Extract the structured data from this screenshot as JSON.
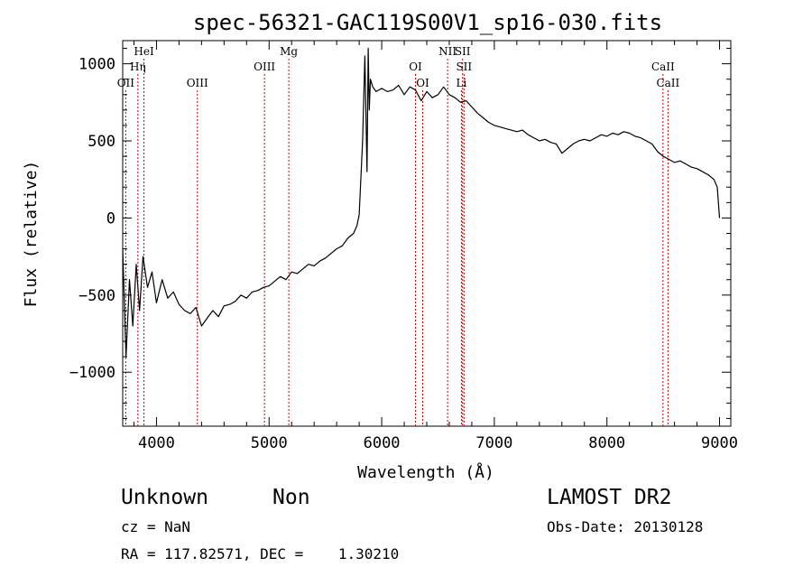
{
  "chart_data": {
    "type": "line",
    "title": "spec-56321-GAC119S00V1_sp16-030.fits",
    "xlabel": "Wavelength (Å)",
    "ylabel": "Flux (relative)",
    "xlim": [
      3700,
      9100
    ],
    "ylim": [
      -1350,
      1150
    ],
    "xticks": [
      4000,
      5000,
      6000,
      7000,
      8000,
      9000
    ],
    "yticks": [
      -1000,
      -500,
      0,
      500,
      1000
    ],
    "grid": false,
    "line_color": "#000000",
    "marker_color": "#cc0000",
    "series": [
      {
        "x": [
          3700,
          3730,
          3760,
          3790,
          3820,
          3850,
          3880,
          3920,
          3960,
          4000,
          4050,
          4100,
          4150,
          4200,
          4250,
          4300,
          4350,
          4400,
          4450,
          4500,
          4550,
          4600,
          4650,
          4700,
          4750,
          4800,
          4850,
          4900,
          4950,
          5000,
          5050,
          5100,
          5150,
          5200,
          5250,
          5300,
          5350,
          5400,
          5450,
          5500,
          5550,
          5600,
          5650,
          5700,
          5750,
          5780,
          5800,
          5830,
          5850,
          5870,
          5880,
          5890,
          5900,
          5920,
          5950,
          6000,
          6050,
          6100,
          6150,
          6200,
          6250,
          6300,
          6350,
          6400,
          6450,
          6500,
          6550,
          6600,
          6650,
          6700,
          6750,
          6800,
          6850,
          6900,
          6950,
          7000,
          7050,
          7100,
          7150,
          7200,
          7250,
          7300,
          7350,
          7400,
          7450,
          7500,
          7550,
          7600,
          7650,
          7700,
          7750,
          7800,
          7850,
          7900,
          7950,
          8000,
          8050,
          8100,
          8150,
          8200,
          8250,
          8300,
          8350,
          8400,
          8450,
          8500,
          8550,
          8600,
          8650,
          8700,
          8750,
          8800,
          8850,
          8900,
          8950,
          8980,
          9000
        ],
        "y": [
          -200,
          -900,
          -400,
          -700,
          -300,
          -600,
          -250,
          -450,
          -350,
          -550,
          -400,
          -520,
          -480,
          -560,
          -600,
          -620,
          -580,
          -700,
          -650,
          -600,
          -640,
          -570,
          -560,
          -540,
          -500,
          -520,
          -480,
          -470,
          -450,
          -440,
          -410,
          -380,
          -400,
          -350,
          -360,
          -330,
          -300,
          -310,
          -280,
          -260,
          -230,
          -200,
          -180,
          -130,
          -100,
          -50,
          20,
          500,
          1050,
          300,
          1100,
          700,
          900,
          850,
          820,
          840,
          820,
          830,
          860,
          800,
          850,
          830,
          760,
          820,
          780,
          800,
          850,
          800,
          780,
          750,
          760,
          720,
          680,
          650,
          620,
          600,
          590,
          580,
          570,
          560,
          570,
          540,
          520,
          500,
          510,
          490,
          480,
          420,
          450,
          480,
          500,
          510,
          500,
          520,
          540,
          530,
          550,
          540,
          560,
          550,
          530,
          520,
          500,
          480,
          430,
          400,
          380,
          360,
          370,
          350,
          330,
          320,
          300,
          280,
          250,
          200,
          0
        ]
      }
    ],
    "lines_top": [
      {
        "label": "HeI",
        "wave": 3889
      },
      {
        "label": "Mg",
        "wave": 5175
      },
      {
        "label": "NII",
        "wave": 6585
      },
      {
        "label": "SII",
        "wave": 6718
      }
    ],
    "lines_mid": [
      {
        "label": "Hη",
        "wave": 3835
      },
      {
        "label": "OIII",
        "wave": 4959
      },
      {
        "label": "OI",
        "wave": 6300
      },
      {
        "label": "SII",
        "wave": 6731
      },
      {
        "label": "CaII",
        "wave": 8498
      }
    ],
    "lines_low": [
      {
        "label": "OII",
        "wave": 3727
      },
      {
        "label": "OIII",
        "wave": 4363
      },
      {
        "label": "OI",
        "wave": 6364
      },
      {
        "label": "Li",
        "wave": 6708
      },
      {
        "label": "CaII",
        "wave": 8542
      }
    ]
  },
  "info": {
    "classification": "Unknown",
    "subclass": "Non",
    "survey": "LAMOST DR2",
    "cz": "cz = NaN",
    "obs_date": "Obs-Date: 20130128",
    "coords": "RA = 117.82571, DEC =    1.30210"
  }
}
